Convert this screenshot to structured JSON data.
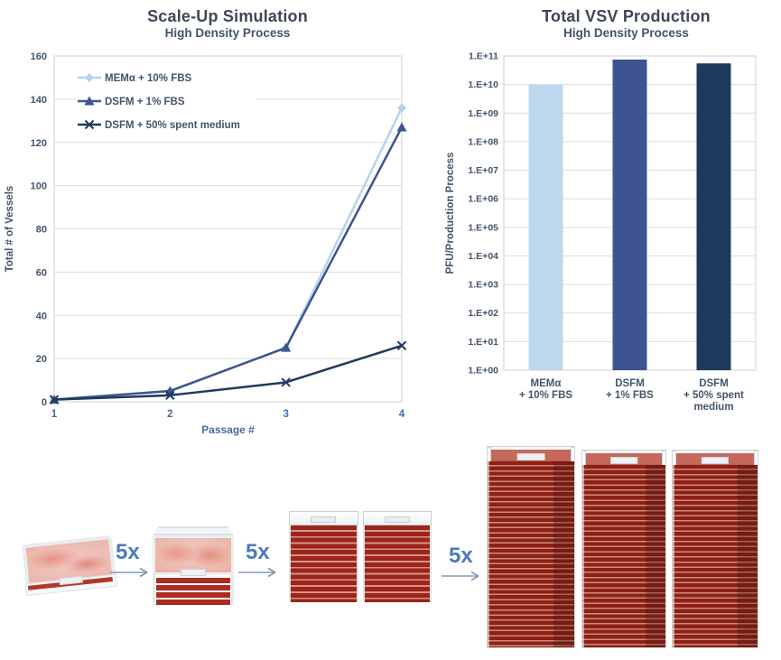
{
  "chart_data": [
    {
      "type": "line",
      "title": "Scale-Up Simulation",
      "subtitle": "High Density Process",
      "xlabel": "Passage #",
      "ylabel": "Total # of Vessels",
      "x": [
        1,
        2,
        3,
        4
      ],
      "xtick_labels": [
        "1",
        "2",
        "3",
        "4"
      ],
      "ylim": [
        0,
        160
      ],
      "ytick_step": 20,
      "grid": true,
      "legend_position": "top-left-inside",
      "series": [
        {
          "name": "MEMα + 10% FBS",
          "values": [
            1,
            5,
            25,
            136
          ],
          "color": "#b5d3ec",
          "marker": "diamond"
        },
        {
          "name": "DSFM + 1% FBS",
          "values": [
            1,
            5,
            25,
            127
          ],
          "color": "#3e5491",
          "marker": "triangle"
        },
        {
          "name": "DSFM + 50% spent medium",
          "values": [
            1,
            3,
            9,
            26
          ],
          "color": "#1f3a5f",
          "marker": "x"
        }
      ]
    },
    {
      "type": "bar",
      "title": "Total VSV Production",
      "subtitle": "High Density Process",
      "ylabel": "PFU/Production Process",
      "yscale": "log",
      "ylim": [
        1,
        100000000000
      ],
      "grid": true,
      "ytick_labels": [
        "1.E+00",
        "1.E+01",
        "1.E+02",
        "1.E+03",
        "1.E+04",
        "1.E+05",
        "1.E+06",
        "1.E+07",
        "1.E+08",
        "1.E+09",
        "1.E+10",
        "1.E+11"
      ],
      "categories": [
        "MEMα\n+ 10% FBS",
        "DSFM\n+ 1% FBS",
        "DSFM\n+ 50% spent\nmedium"
      ],
      "values": [
        10000000000,
        75000000000,
        55000000000
      ],
      "colors": [
        "#bdd7ee",
        "#3e5491",
        "#1f3a5f"
      ]
    }
  ],
  "process_flow": {
    "multipliers": [
      "5x",
      "5x",
      "5x"
    ]
  },
  "colors": {
    "accent_light_blue": "#bdd7ee",
    "accent_medium_blue": "#3e5491",
    "accent_navy": "#1f3a5f",
    "axis_text": "#44546A",
    "multiplier_blue": "#4d7ab8",
    "vessel_red": "#8e2014",
    "medium_pink": "#eec0b6",
    "gridline": "#dcdcdc"
  }
}
